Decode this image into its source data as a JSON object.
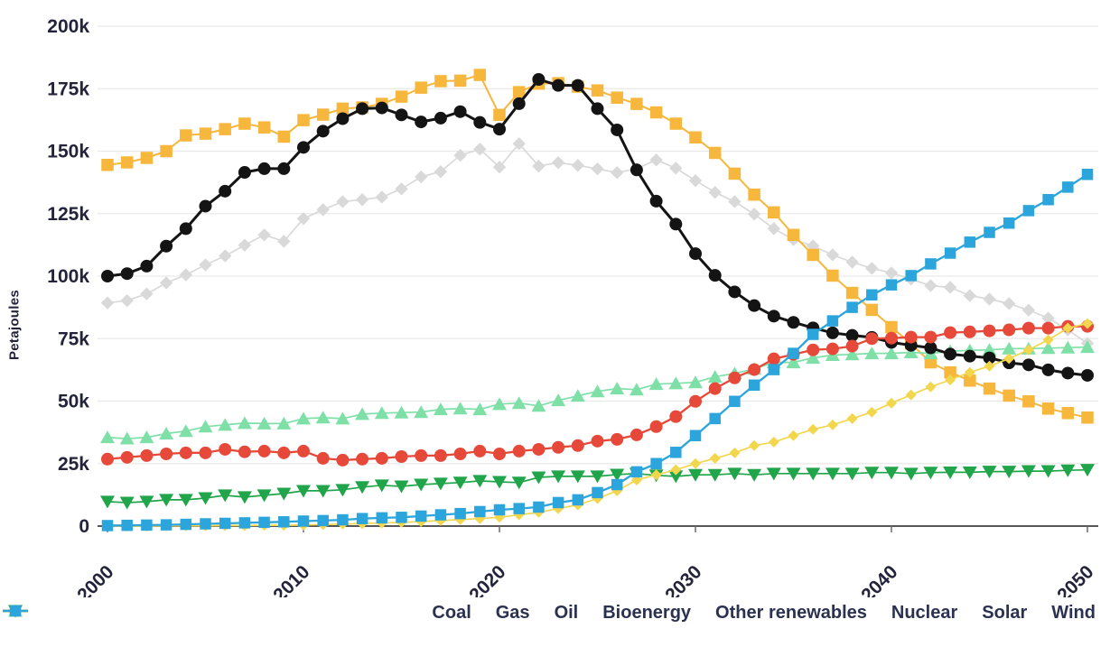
{
  "chart_data": {
    "type": "line",
    "title": "",
    "ylabel": "Petajoules",
    "values_unit": "thousand petajoules (k)",
    "ylim_k": [
      0,
      200
    ],
    "y_ticks_k": [
      0,
      25,
      50,
      75,
      100,
      125,
      150,
      175,
      200
    ],
    "y_tick_labels": [
      "0",
      "25k",
      "50k",
      "75k",
      "100k",
      "125k",
      "150k",
      "175k",
      "200k"
    ],
    "x_ticks": [
      2000,
      2010,
      2020,
      2030,
      2040,
      2050
    ],
    "grid": "horizontal",
    "legend_position": "bottom",
    "years": [
      2000,
      2001,
      2002,
      2003,
      2004,
      2005,
      2006,
      2007,
      2008,
      2009,
      2010,
      2011,
      2012,
      2013,
      2014,
      2015,
      2016,
      2017,
      2018,
      2019,
      2020,
      2021,
      2022,
      2023,
      2024,
      2025,
      2026,
      2027,
      2028,
      2029,
      2030,
      2031,
      2032,
      2033,
      2034,
      2035,
      2036,
      2037,
      2038,
      2039,
      2040,
      2041,
      2042,
      2043,
      2044,
      2045,
      2046,
      2047,
      2048,
      2049,
      2050
    ],
    "series": [
      {
        "key": "coal",
        "name": "Coal",
        "color": "#141414",
        "marker": "circle",
        "values": [
          100,
          101,
          104,
          112,
          119,
          128,
          134,
          141.5,
          143,
          143,
          151.5,
          158,
          163,
          167,
          167.3,
          164.5,
          161.7,
          163.2,
          165.8,
          161.5,
          158.8,
          169,
          178.7,
          176.3,
          176.3,
          167,
          158.5,
          142.5,
          130,
          120.8,
          109,
          100.3,
          93.7,
          88.2,
          84,
          81.5,
          79.3,
          77.3,
          76.3,
          75.5,
          73.5,
          72.3,
          71.3,
          68.8,
          68,
          67.3,
          65.3,
          64.5,
          62.5,
          61.2,
          60.3
        ]
      },
      {
        "key": "gas",
        "name": "Gas",
        "color": "#d9d9d9",
        "marker": "diamond",
        "values": [
          89.3,
          90.2,
          92.9,
          97.3,
          100.5,
          104.5,
          108.1,
          112.4,
          116.5,
          113.9,
          123,
          126.6,
          129.8,
          130.6,
          131.6,
          134.9,
          139.7,
          141.8,
          148.3,
          150.8,
          143.6,
          153,
          144,
          145.4,
          144.3,
          142.9,
          141.4,
          143,
          146.5,
          143.2,
          138.2,
          133.5,
          129.8,
          124.8,
          119,
          114.6,
          112.1,
          108.5,
          105.6,
          103.1,
          101.3,
          98.8,
          96.2,
          95.5,
          92.2,
          90.8,
          89,
          86.4,
          83.2,
          78.5,
          73.1
        ]
      },
      {
        "key": "oil",
        "name": "Oil",
        "color": "#f7b63c",
        "marker": "square",
        "values": [
          144.5,
          145.5,
          147.3,
          150,
          156.3,
          157,
          158.8,
          161,
          159.5,
          155.8,
          162.4,
          164.6,
          167,
          167.5,
          168.9,
          171.8,
          175.4,
          178,
          178.2,
          180.5,
          164.5,
          173.6,
          177,
          177.2,
          175.8,
          174.3,
          171.4,
          168.9,
          165.5,
          161,
          155.5,
          149.3,
          141,
          132.6,
          125.5,
          116.5,
          108.5,
          100.2,
          93.3,
          86.5,
          79.6,
          73,
          65.5,
          61.5,
          58.2,
          55,
          52.2,
          49.9,
          47,
          45.2,
          43.4
        ]
      },
      {
        "key": "bioenergy",
        "name": "Bioenergy",
        "color": "#7ee0a7",
        "marker": "triangle-up",
        "values": [
          35.5,
          35,
          35.5,
          37,
          38,
          39.8,
          40.5,
          41.2,
          41,
          41,
          43,
          43.4,
          43,
          44.8,
          45.2,
          45.4,
          45.6,
          46.7,
          47,
          46.7,
          48.8,
          49.2,
          48.1,
          50.3,
          52.1,
          53.9,
          55,
          54.6,
          56.8,
          57.1,
          57.5,
          59.7,
          61.1,
          62.9,
          65.5,
          65.5,
          67.3,
          68.4,
          68.7,
          69.1,
          69.1,
          69.5,
          69.1,
          70,
          70.3,
          70.5,
          71,
          71,
          71.2,
          71.4,
          71.6
        ]
      },
      {
        "key": "other_renewables",
        "name": "Other renewables",
        "color": "#21a54a",
        "marker": "triangle-down",
        "values": [
          9.8,
          9.4,
          9.8,
          10.5,
          10.5,
          11.2,
          12.3,
          11.6,
          12.3,
          13,
          14.1,
          14.1,
          14.5,
          15.6,
          16.3,
          15.9,
          16.6,
          17,
          17.4,
          18.1,
          17.7,
          17.4,
          19.5,
          19.9,
          19.9,
          19.9,
          20.6,
          21,
          20.3,
          19.9,
          20.5,
          20.5,
          21,
          20.5,
          21,
          21,
          21,
          21,
          21,
          21.4,
          21.4,
          21,
          21.4,
          21.5,
          21.5,
          21.8,
          21.8,
          22,
          22,
          22.3,
          22.5
        ]
      },
      {
        "key": "nuclear",
        "name": "Nuclear",
        "color": "#e6493a",
        "marker": "circle",
        "values": [
          26.8,
          27.5,
          28.2,
          28.9,
          29.3,
          29.3,
          30.7,
          29.7,
          30,
          29.3,
          30,
          27.1,
          26.4,
          26.8,
          27.1,
          27.8,
          28.2,
          28.2,
          28.9,
          30,
          28.9,
          30,
          30.7,
          31.5,
          32.2,
          34,
          34.7,
          36.5,
          39.8,
          43.8,
          49.9,
          55,
          59.3,
          62.6,
          66.9,
          68.7,
          70.5,
          70.9,
          72,
          75,
          75.2,
          75.6,
          75.6,
          77.4,
          77.7,
          78.1,
          78.5,
          79.2,
          79.2,
          79.9,
          79.9
        ]
      },
      {
        "key": "solar",
        "name": "Solar",
        "color": "#f2d74e",
        "marker": "diamond",
        "values": [
          0,
          0,
          0,
          0.1,
          0.1,
          0.1,
          0.2,
          0.2,
          0.3,
          0.3,
          0.4,
          0.6,
          0.8,
          1,
          1.2,
          1.5,
          1.8,
          2.2,
          2.6,
          3,
          3.5,
          4.5,
          5.5,
          7,
          8.5,
          11,
          14.1,
          18.4,
          20.5,
          22.5,
          25,
          27.1,
          29.3,
          32.2,
          33.6,
          36.2,
          38.7,
          40.5,
          43,
          45.6,
          49.2,
          52.5,
          55.7,
          58.5,
          61.5,
          64,
          67,
          70.5,
          74.5,
          79.2,
          81
        ]
      },
      {
        "key": "wind",
        "name": "Wind",
        "color": "#2ca5dc",
        "marker": "square",
        "values": [
          0.2,
          0.3,
          0.4,
          0.5,
          0.7,
          0.9,
          1.1,
          1.3,
          1.5,
          1.7,
          2,
          2.2,
          2.5,
          3,
          3.3,
          3.5,
          4,
          4.5,
          5,
          5.8,
          6.5,
          7,
          7.6,
          9.4,
          10.5,
          13.4,
          16.6,
          21.7,
          25,
          29.5,
          36.2,
          43,
          49.9,
          56.4,
          62.6,
          69.1,
          76.7,
          82.1,
          87.5,
          92.5,
          96.5,
          100.2,
          104.9,
          109.2,
          113.6,
          117.5,
          121.2,
          126.2,
          130.6,
          135.6,
          140.7
        ]
      }
    ]
  }
}
